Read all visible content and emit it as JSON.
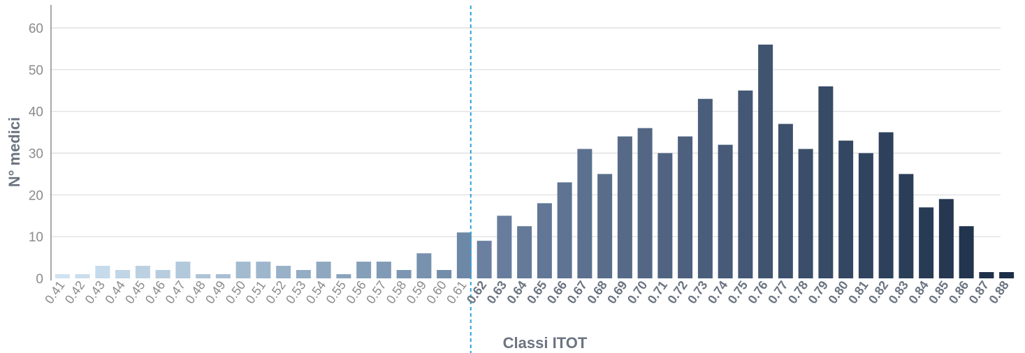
{
  "chart_data": {
    "type": "bar",
    "xlabel": "Classi ITOT",
    "ylabel": "N° medici",
    "ylim": [
      0,
      65
    ],
    "yticks": [
      0,
      10,
      20,
      30,
      40,
      50,
      60
    ],
    "grid": "horizontal",
    "threshold_after_category": "0.61",
    "categories": [
      "0.41",
      "0.42",
      "0.43",
      "0.44",
      "0.45",
      "0.46",
      "0.47",
      "0.48",
      "0.49",
      "0.50",
      "0.51",
      "0.52",
      "0.53",
      "0.54",
      "0.55",
      "0.56",
      "0.57",
      "0.58",
      "0.59",
      "0.60",
      "0.61",
      "0.62",
      "0.63",
      "0.64",
      "0.65",
      "0.66",
      "0.67",
      "0.68",
      "0.69",
      "0.70",
      "0.71",
      "0.72",
      "0.73",
      "0.74",
      "0.75",
      "0.76",
      "0.77",
      "0.78",
      "0.79",
      "0.80",
      "0.81",
      "0.82",
      "0.83",
      "0.84",
      "0.85",
      "0.86",
      "0.87",
      "0.88"
    ],
    "values": [
      1,
      1,
      3,
      2,
      3,
      2,
      4,
      1,
      1,
      4,
      4,
      3,
      2,
      4,
      1,
      4,
      4,
      2,
      6,
      2,
      11,
      9,
      15,
      12.5,
      18,
      23,
      31,
      25,
      34,
      36,
      30,
      34,
      43,
      32,
      45,
      56,
      37,
      31,
      46,
      33,
      30,
      35,
      25,
      17,
      19,
      12.5,
      1.5,
      1.5
    ],
    "colors": {
      "low_start": "#cfe3f1",
      "low_end": "#6d88a6",
      "high_start": "#6b80a0",
      "high_end": "#1c2e47",
      "grid": "#dcdcdc",
      "axis": "#8c8c8c",
      "threshold": "#2aa3dc",
      "axis_label": "#6b7480",
      "tick_label": "#8a8a8a"
    }
  }
}
